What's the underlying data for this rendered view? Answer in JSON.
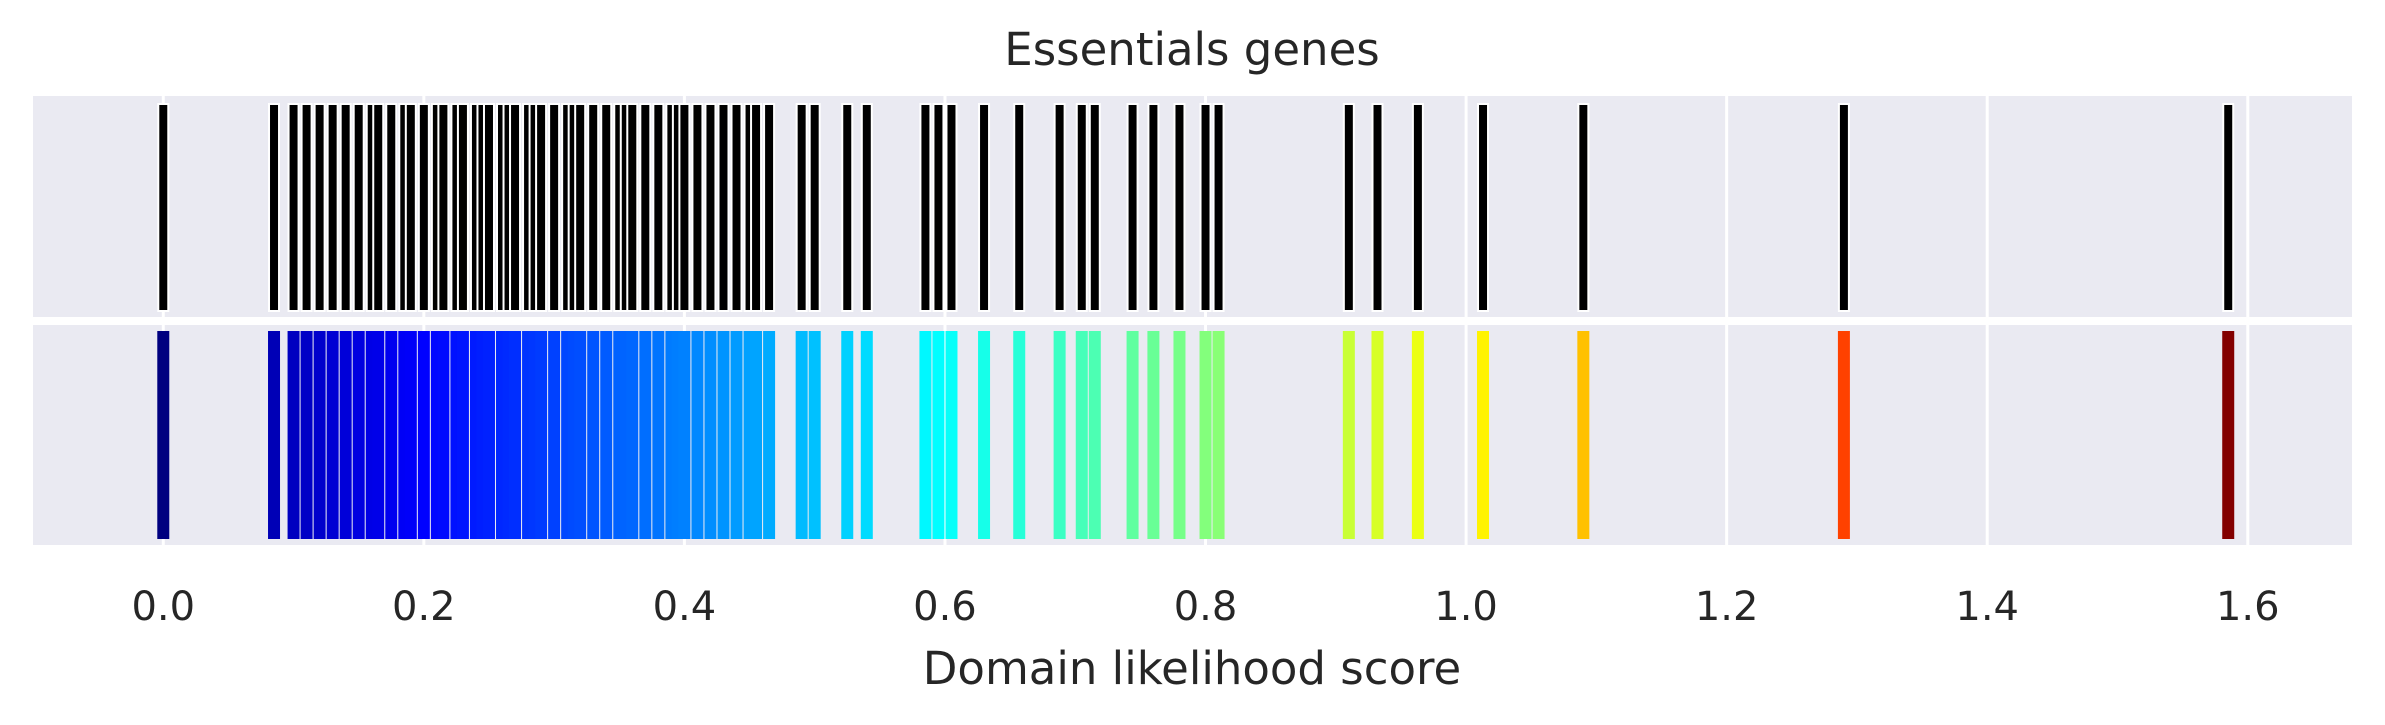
{
  "chart_data": {
    "type": "rug",
    "title": "Essentials genes",
    "xlabel": "Domain likelihood score",
    "ylabel": "",
    "xlim": [
      -0.1,
      1.68
    ],
    "xticks": [
      0.0,
      0.2,
      0.4,
      0.6,
      0.8,
      1.0,
      1.2,
      1.4,
      1.6
    ],
    "xtick_labels": [
      "0.0",
      "0.2",
      "0.4",
      "0.6",
      "0.8",
      "1.0",
      "1.2",
      "1.4",
      "1.6"
    ],
    "grid": true,
    "colormap": "jet",
    "color_range": [
      0.0,
      1.59
    ],
    "panels": [
      {
        "name": "",
        "style": "black-lines"
      },
      {
        "name": "",
        "style": "colormap-lines"
      }
    ],
    "values": [
      0.0,
      0.085,
      0.1,
      0.11,
      0.12,
      0.13,
      0.14,
      0.15,
      0.16,
      0.165,
      0.175,
      0.185,
      0.19,
      0.2,
      0.21,
      0.215,
      0.225,
      0.23,
      0.24,
      0.245,
      0.25,
      0.26,
      0.265,
      0.27,
      0.28,
      0.285,
      0.29,
      0.3,
      0.31,
      0.315,
      0.32,
      0.33,
      0.34,
      0.35,
      0.355,
      0.36,
      0.37,
      0.38,
      0.39,
      0.395,
      0.4,
      0.41,
      0.42,
      0.43,
      0.44,
      0.45,
      0.455,
      0.465,
      0.49,
      0.5,
      0.525,
      0.54,
      0.585,
      0.595,
      0.605,
      0.63,
      0.657,
      0.688,
      0.705,
      0.715,
      0.744,
      0.76,
      0.78,
      0.8,
      0.81,
      0.91,
      0.932,
      0.963,
      1.013,
      1.09,
      1.29,
      1.585
    ]
  }
}
